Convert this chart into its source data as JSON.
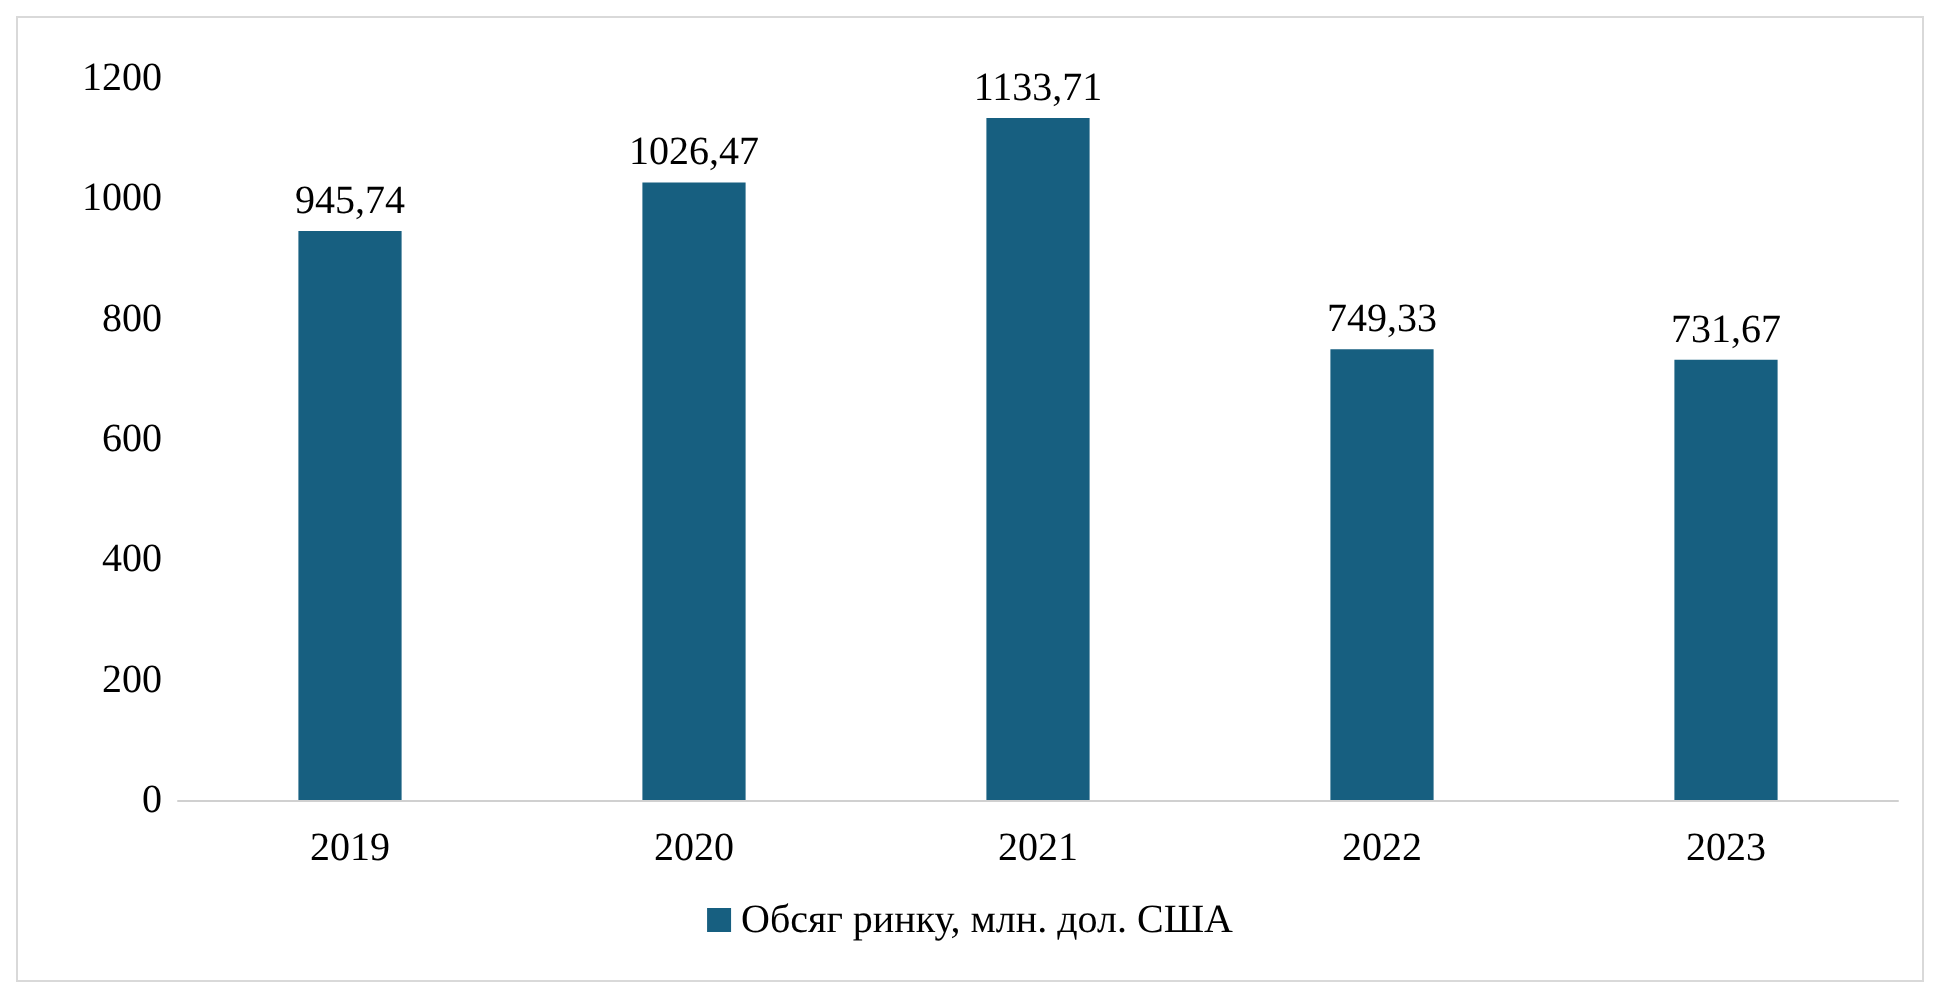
{
  "chart_data": {
    "type": "bar",
    "categories": [
      "2019",
      "2020",
      "2021",
      "2022",
      "2023"
    ],
    "series": [
      {
        "name": "Обсяг ринку, млн. дол. США",
        "color": "#175f80",
        "values": [
          945.74,
          1026.47,
          1133.71,
          749.33,
          731.67
        ],
        "value_labels": [
          "945,74",
          "1026,47",
          "1133,71",
          "749,33",
          "731,67"
        ]
      }
    ],
    "ylim": [
      0,
      1200
    ],
    "yticks": [
      0,
      200,
      400,
      600,
      800,
      1000,
      1200
    ],
    "grid": false,
    "legend": "bottom"
  }
}
